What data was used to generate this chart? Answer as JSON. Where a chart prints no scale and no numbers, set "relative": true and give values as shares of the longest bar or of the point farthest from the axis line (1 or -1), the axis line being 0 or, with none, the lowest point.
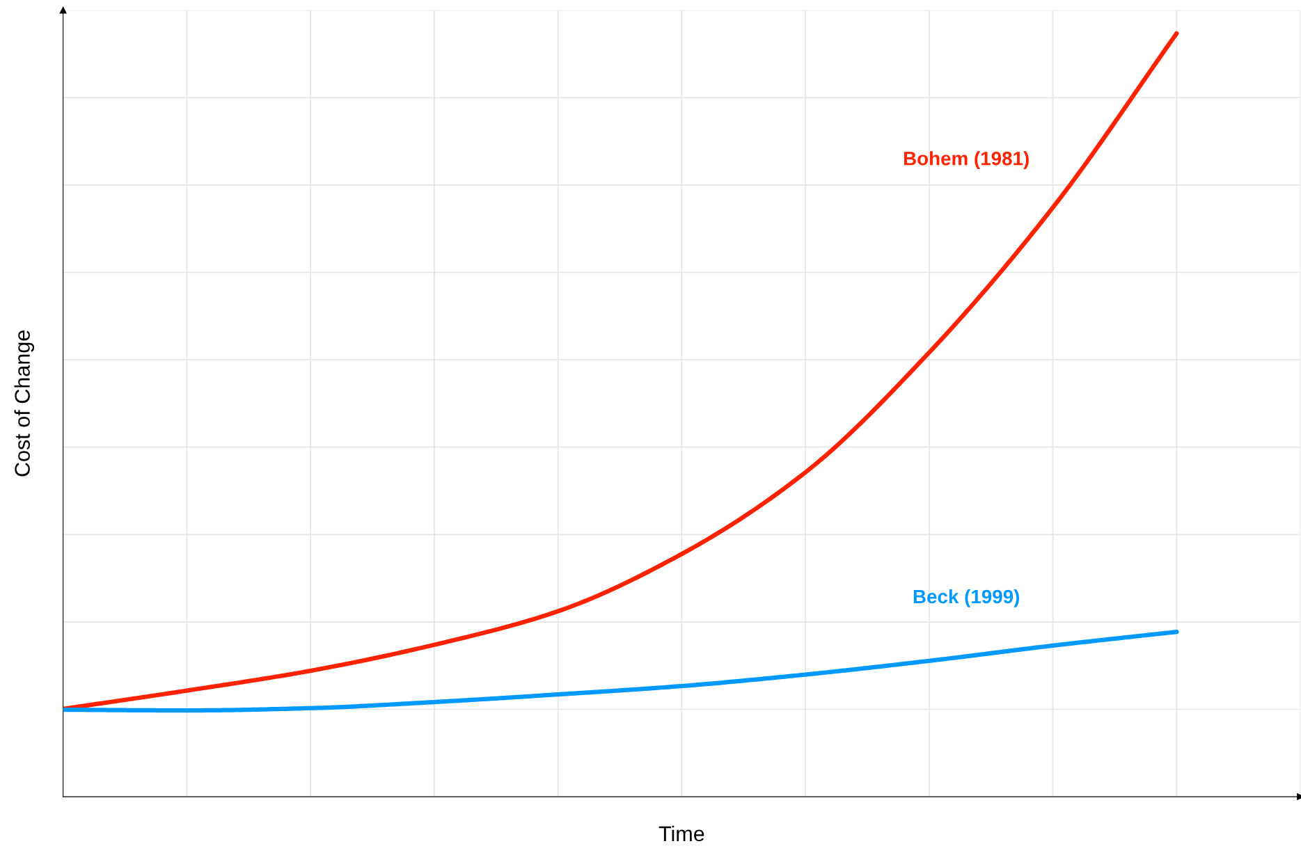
{
  "chart_data": {
    "type": "line",
    "relative": true,
    "xlabel": "Time",
    "ylabel": "Cost of Change",
    "categories": [
      null,
      null,
      null,
      null,
      null,
      null,
      null,
      null,
      null,
      null
    ],
    "series": [
      {
        "name": "Bohem (1981)",
        "color": "#ff2200",
        "values": [
          0.115,
          0.139,
          0.165,
          0.199,
          0.243,
          0.318,
          0.425,
          0.582,
          0.772,
          1.0
        ]
      },
      {
        "name": "Beck (1999)",
        "color": "#0099ff",
        "values": [
          0.114,
          0.113,
          0.116,
          0.124,
          0.134,
          0.145,
          0.16,
          0.178,
          0.198,
          0.216
        ]
      }
    ],
    "grid": true,
    "marker": "none",
    "line_style": "solid"
  }
}
